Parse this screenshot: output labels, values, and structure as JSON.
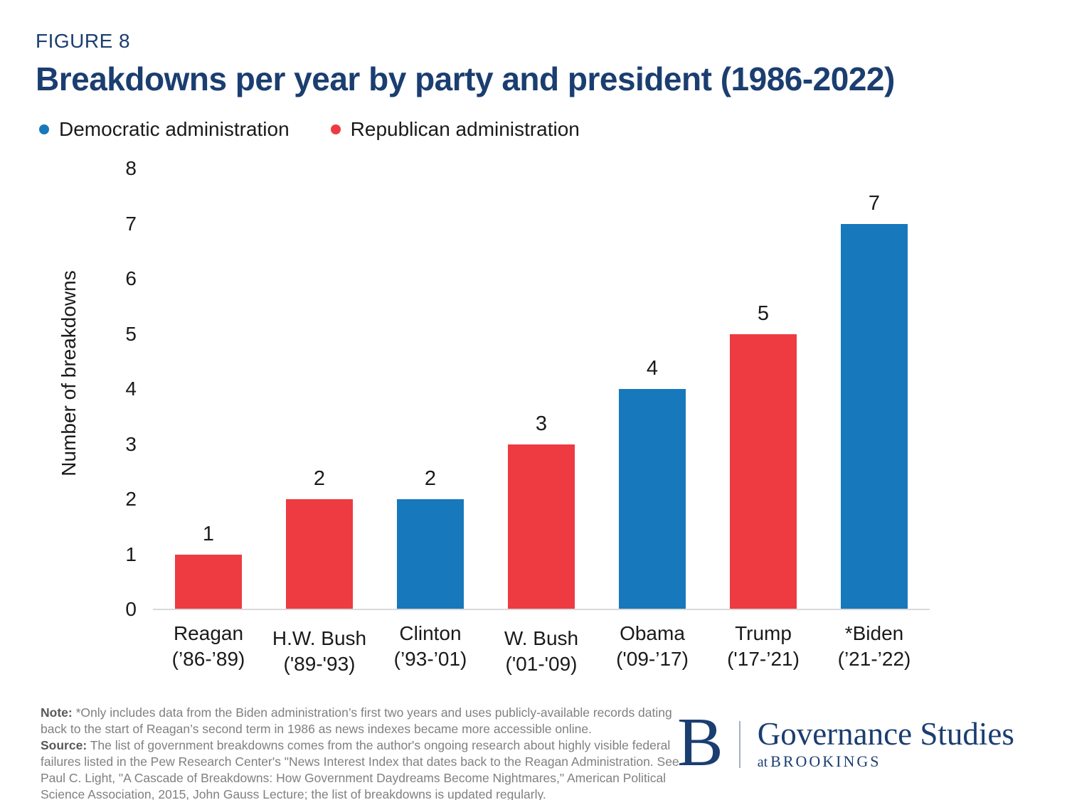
{
  "figure_label": "FIGURE 8",
  "title": "Breakdowns per year by party and president (1986-2022)",
  "legend": {
    "items": [
      {
        "label": "Democratic administration",
        "party": "democratic"
      },
      {
        "label": "Republican administration",
        "party": "republican"
      }
    ]
  },
  "chart_data": {
    "type": "bar",
    "title": "Breakdowns per year by party and president (1986-2022)",
    "xlabel": "",
    "ylabel": "Number of breakdowns",
    "ylim": [
      0,
      8
    ],
    "yticks": [
      0,
      1,
      2,
      3,
      4,
      5,
      6,
      7,
      8
    ],
    "grid": false,
    "legend_position": "top-left",
    "bar_value_labels": true,
    "bars": [
      {
        "president": "Reagan",
        "years": "(’86-’89)",
        "party": "republican",
        "value": 1
      },
      {
        "president": "H.W. Bush",
        "years": "('89-'93)",
        "party": "republican",
        "value": 2
      },
      {
        "president": "Clinton",
        "years": "(’93-’01)",
        "party": "democratic",
        "value": 2
      },
      {
        "president": "W. Bush",
        "years": "('01-'09)",
        "party": "republican",
        "value": 3
      },
      {
        "president": "Obama",
        "years": "('09-’17)",
        "party": "democratic",
        "value": 4
      },
      {
        "president": "Trump",
        "years": "('17-’21)",
        "party": "republican",
        "value": 5
      },
      {
        "president": "*Biden",
        "years": "(’21-’22)",
        "party": "democratic",
        "value": 7
      }
    ],
    "colors": {
      "democratic": "#1878BC",
      "republican": "#EE3B42"
    }
  },
  "note": {
    "lines": [
      {
        "bold": "Note:",
        "text": " *Only includes data from the Biden administration’s first two years and uses publicly-available records dating"
      },
      {
        "bold": "",
        "text": "back to the start of Reagan’s second term in 1986 as news indexes became more accessible online."
      },
      {
        "bold": "Source:",
        "text": " The list of government breakdowns comes from the author's ongoing research about highly visible federal"
      },
      {
        "bold": "",
        "text": "failures listed in the Pew Research Center's \"News Interest Index that dates back to the Reagan Administration. See"
      },
      {
        "bold": "",
        "text": "Paul C. Light, \"A Cascade of Breakdowns: How Government Daydreams Become Nightmares,\" American Political"
      },
      {
        "bold": "",
        "text": "Science Association, 2015, John Gauss Lecture; the list of breakdowns is updated regularly."
      }
    ]
  },
  "logo": {
    "b": "B",
    "name": "Governance Studies",
    "at": "at",
    "org": "BROOKINGS"
  },
  "colors": {
    "navy": "#1B3E70",
    "text": "#1A1A1A",
    "note_gray": "#808080",
    "baseline": "#D9D9D9"
  }
}
